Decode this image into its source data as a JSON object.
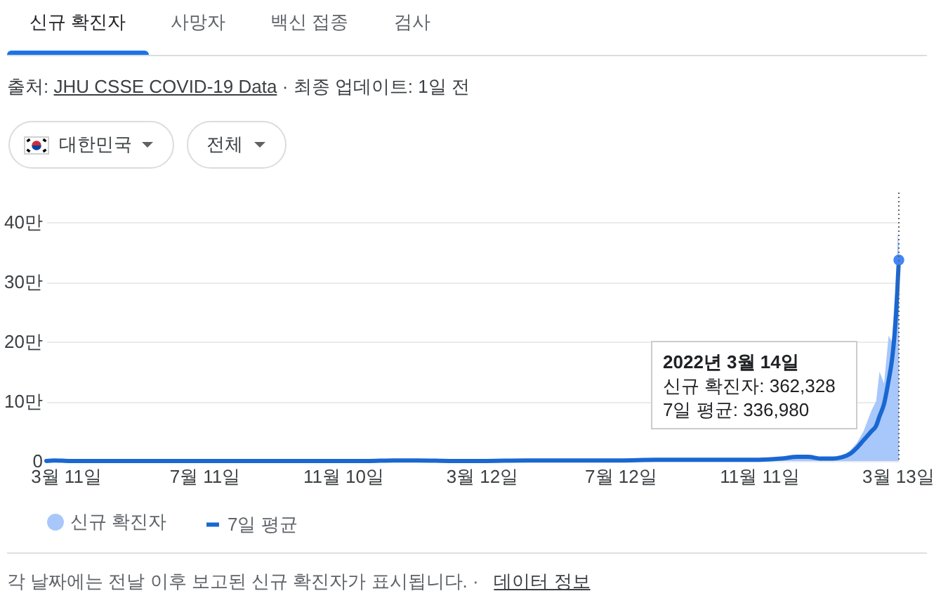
{
  "chart_data": {
    "type": "area",
    "annotations": [
      "신규 확진자",
      "사망자",
      "백신 접종",
      "검사",
      "출처:",
      "JHU CSSE COVID-19 Data",
      "· 최종 업데이트: 1일 전",
      "대한민국",
      "전체",
      "각 날짜에는 전날 이후 보고된 신규 확진자가 표시됩니다. ·",
      "데이터 정보",
      "2022년 3월 14일",
      "신규 확진자: 362,328",
      "7일 평균: 336,980"
    ],
    "x": [
      "2020-02-23",
      "2020-03-01",
      "2020-03-15",
      "2020-04-15",
      "2020-06-01",
      "2020-08-01",
      "2020-08-27",
      "2020-10-01",
      "2020-11-10",
      "2020-12-01",
      "2020-12-25",
      "2021-01-15",
      "2021-02-15",
      "2021-03-12",
      "2021-04-20",
      "2021-06-01",
      "2021-07-12",
      "2021-08-12",
      "2021-09-25",
      "2021-10-15",
      "2021-11-11",
      "2021-11-30",
      "2021-12-15",
      "2021-12-24",
      "2022-01-05",
      "2022-01-15",
      "2022-01-22",
      "2022-01-30",
      "2022-02-05",
      "2022-02-11",
      "2022-02-18",
      "2022-02-22",
      "2022-02-25",
      "2022-03-01",
      "2022-03-05",
      "2022-03-08",
      "2022-03-10",
      "2022-03-12",
      "2022-03-13",
      "2022-03-14"
    ],
    "series": [
      {
        "name": "신규 확진자",
        "color": "#a8c7fa",
        "values": [
          0,
          0.1,
          0,
          0,
          0,
          0,
          0,
          0,
          0,
          0.1,
          0.1,
          0.1,
          0,
          0.1,
          0.1,
          0.1,
          0.1,
          0.2,
          0.3,
          0.2,
          0.3,
          0.5,
          0.8,
          0.6,
          0.4,
          0.5,
          0.7,
          1.7,
          3,
          5,
          8.5,
          10,
          15,
          13,
          21,
          20,
          26.5,
          30,
          38.3,
          36.2328
        ]
      },
      {
        "name": "7일 평균",
        "type": "line",
        "color": "#1967d2",
        "values": [
          0,
          0.1,
          0,
          0,
          0,
          0,
          0,
          0,
          0,
          0,
          0.1,
          0.1,
          0,
          0,
          0.1,
          0.1,
          0.1,
          0.2,
          0.2,
          0.2,
          0.2,
          0.4,
          0.7,
          0.7,
          0.4,
          0.4,
          0.6,
          1.2,
          2.2,
          3.5,
          5,
          5.9,
          7.5,
          9.6,
          13.5,
          17,
          20.7,
          26.1,
          30,
          33.698
        ]
      },
      {
        "type": "scatter",
        "color": "#4285f4",
        "x": [
          "2022-03-14"
        ],
        "values": [
          33.698
        ]
      }
    ],
    "xlim": [
      "2020-02-23",
      "2022-03-14"
    ],
    "xticks": [
      {
        "value": "2020-03-11",
        "label": "3월 11일"
      },
      {
        "value": "2020-07-11",
        "label": "7월 11일"
      },
      {
        "value": "2020-11-10",
        "label": "11월 10일"
      },
      {
        "value": "2021-03-12",
        "label": "3월 12일"
      },
      {
        "value": "2021-07-12",
        "label": "7월 12일"
      },
      {
        "value": "2021-11-11",
        "label": "11월 11일"
      },
      {
        "value": "2022-03-13",
        "label": "3월 13일"
      }
    ],
    "ylim": [
      0,
      45
    ],
    "yticks": [
      0,
      {
        "value": 10,
        "label": "10만"
      },
      {
        "value": 20,
        "label": "20만"
      },
      {
        "value": 30,
        "label": "30만"
      },
      {
        "value": 40,
        "label": "40만"
      }
    ],
    "ref_lines": [
      {
        "axis": "x",
        "value": "2022-03-14",
        "color": "#5f6368",
        "line_style": "dotted"
      }
    ],
    "grid": "y",
    "legend": "bottom left"
  }
}
